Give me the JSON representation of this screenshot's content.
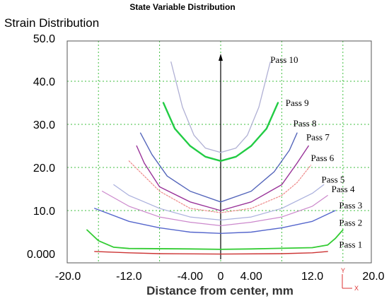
{
  "chart_data": {
    "type": "line",
    "title": "State Variable Distribution",
    "ylabel": "Strain Distribution",
    "xlabel": "Distance from center, mm",
    "xlim": [
      -20,
      20
    ],
    "ylim": [
      0,
      50
    ],
    "x_ticks": [
      "-20.0",
      "-12.0",
      "-4.00",
      "0",
      "4.00",
      "12.0",
      "20.0"
    ],
    "x_tick_values": [
      -20,
      -12,
      -4,
      0,
      4,
      12,
      20
    ],
    "y_ticks": [
      "0.000",
      "10.0",
      "20.0",
      "30.0",
      "40.0",
      "50.0"
    ],
    "y_tick_values": [
      0,
      10,
      20,
      30,
      40,
      50
    ],
    "x_grid": [
      -16,
      -8,
      0,
      8,
      16
    ],
    "y_grid": [
      10,
      20,
      30,
      40
    ],
    "series": [
      {
        "name": "Pass 1",
        "color": "#cc3333",
        "width": 1.4,
        "dash": "",
        "label_at": [
          15.5,
          1.4
        ],
        "points": [
          [
            -16.5,
            0.5
          ],
          [
            -12,
            0.2
          ],
          [
            -8,
            0
          ],
          [
            0,
            -0.1
          ],
          [
            8,
            0
          ],
          [
            12,
            0.2
          ],
          [
            14,
            0.5
          ]
        ]
      },
      {
        "name": "Pass 2",
        "color": "#33cc33",
        "width": 1.8,
        "dash": "",
        "label_at": [
          15.5,
          6.5
        ],
        "points": [
          [
            -17.5,
            5.5
          ],
          [
            -16,
            3
          ],
          [
            -14,
            1.5
          ],
          [
            -12,
            1.2
          ],
          [
            -4,
            1.1
          ],
          [
            0,
            1
          ],
          [
            4,
            1.1
          ],
          [
            12,
            1.4
          ],
          [
            14,
            2
          ],
          [
            15,
            3.5
          ],
          [
            16,
            5.5
          ]
        ]
      },
      {
        "name": "Pass 3",
        "color": "#5566cc",
        "width": 1.4,
        "dash": "",
        "label_at": [
          15.5,
          10.5
        ],
        "points": [
          [
            -16.5,
            10.5
          ],
          [
            -12,
            7.5
          ],
          [
            -8,
            6
          ],
          [
            -4,
            5
          ],
          [
            0,
            4.7
          ],
          [
            4,
            5
          ],
          [
            8,
            6
          ],
          [
            12,
            7.5
          ],
          [
            15,
            10
          ]
        ]
      },
      {
        "name": "Pass 4",
        "color": "#cc88cc",
        "width": 1.2,
        "dash": "",
        "label_at": [
          14.5,
          14.3
        ],
        "points": [
          [
            -15.5,
            14.5
          ],
          [
            -12,
            11
          ],
          [
            -8,
            8.5
          ],
          [
            -4,
            7.3
          ],
          [
            0,
            6.5
          ],
          [
            4,
            7.3
          ],
          [
            8,
            8.5
          ],
          [
            12,
            11
          ],
          [
            14,
            13.5
          ]
        ]
      },
      {
        "name": "Pass 5",
        "color": "#aab0dd",
        "width": 1.2,
        "dash": "",
        "label_at": [
          13.2,
          16.5
        ],
        "points": [
          [
            -14,
            16
          ],
          [
            -12,
            13.5
          ],
          [
            -8,
            10.5
          ],
          [
            -4,
            8.5
          ],
          [
            0,
            7.8
          ],
          [
            4,
            8.5
          ],
          [
            8,
            10.5
          ],
          [
            12,
            14
          ],
          [
            13.5,
            16
          ]
        ]
      },
      {
        "name": "Pass 6",
        "color": "#ee8888",
        "width": 1.2,
        "dash": "2 2",
        "label_at": [
          11.8,
          21.5
        ],
        "points": [
          [
            -12,
            21.5
          ],
          [
            -10,
            18
          ],
          [
            -8,
            14.5
          ],
          [
            -4,
            10.5
          ],
          [
            0,
            9.5
          ],
          [
            4,
            10.5
          ],
          [
            8,
            13.5
          ],
          [
            10,
            16.5
          ],
          [
            11.8,
            20.5
          ]
        ]
      },
      {
        "name": "Pass 7",
        "color": "#993399",
        "width": 1.4,
        "dash": "",
        "label_at": [
          11.2,
          26.3
        ],
        "points": [
          [
            -11,
            25
          ],
          [
            -10,
            21
          ],
          [
            -8,
            15.5
          ],
          [
            -4,
            12
          ],
          [
            0,
            10
          ],
          [
            4,
            12
          ],
          [
            8,
            16
          ],
          [
            10,
            21
          ],
          [
            11.5,
            25
          ]
        ]
      },
      {
        "name": "Pass 8",
        "color": "#5566bb",
        "width": 1.4,
        "dash": "",
        "label_at": [
          9.5,
          29.5
        ],
        "points": [
          [
            -10.5,
            28
          ],
          [
            -9,
            23
          ],
          [
            -7,
            18
          ],
          [
            -4,
            14.5
          ],
          [
            0,
            12
          ],
          [
            4,
            14.5
          ],
          [
            7,
            19
          ],
          [
            9,
            24
          ],
          [
            10,
            28
          ]
        ]
      },
      {
        "name": "Pass 9",
        "color": "#22cc44",
        "width": 2.4,
        "dash": "",
        "label_at": [
          8.5,
          34.3
        ],
        "points": [
          [
            -7.5,
            35
          ],
          [
            -6,
            29
          ],
          [
            -4,
            25
          ],
          [
            -2,
            22.5
          ],
          [
            0,
            21.5
          ],
          [
            2,
            22.5
          ],
          [
            4,
            25
          ],
          [
            6,
            29
          ],
          [
            7.5,
            35
          ]
        ]
      },
      {
        "name": "Pass 10",
        "color": "#b0b0d4",
        "width": 1.3,
        "dash": "",
        "label_at": [
          6.5,
          44.3
        ],
        "points": [
          [
            -6.5,
            44.5
          ],
          [
            -5,
            34
          ],
          [
            -3.5,
            27.5
          ],
          [
            -2,
            24.5
          ],
          [
            0,
            23.5
          ],
          [
            2,
            24.5
          ],
          [
            3.5,
            27.5
          ],
          [
            5,
            34
          ],
          [
            6.5,
            44.5
          ]
        ]
      }
    ]
  }
}
